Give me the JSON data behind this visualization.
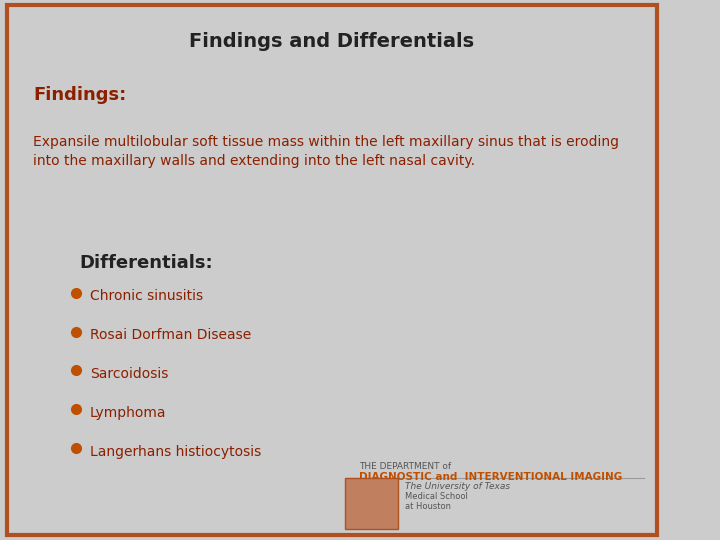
{
  "title": "Findings and Differentials",
  "findings_label": "Findings:",
  "findings_text": "Expansile multilobular soft tissue mass within the left maxillary sinus that is eroding\ninto the maxillary walls and extending into the left nasal cavity.",
  "differentials_label": "Differentials:",
  "differentials_items": [
    "Chronic sinusitis",
    "Rosai Dorfman Disease",
    "Sarcoidosis",
    "Lymphoma",
    "Langerhans histiocytosis"
  ],
  "bg_color": "#cccccc",
  "border_color": "#b05020",
  "title_color": "#222222",
  "findings_label_color": "#8b2000",
  "findings_text_color": "#8b2000",
  "differentials_label_color": "#222222",
  "differentials_text_color": "#8b2000",
  "bullet_color": "#c05000",
  "footer_line1": "THE DEPARTMENT of",
  "footer_line2": "DIAGNOSTIC and  INTERVENTIONAL IMAGING",
  "footer_line3": "The University of Texas",
  "footer_line4": "Medical School",
  "footer_line5": "at Houston",
  "footer_text_color": "#555555",
  "footer_orange_color": "#c05000",
  "shield_color": "#c08060"
}
